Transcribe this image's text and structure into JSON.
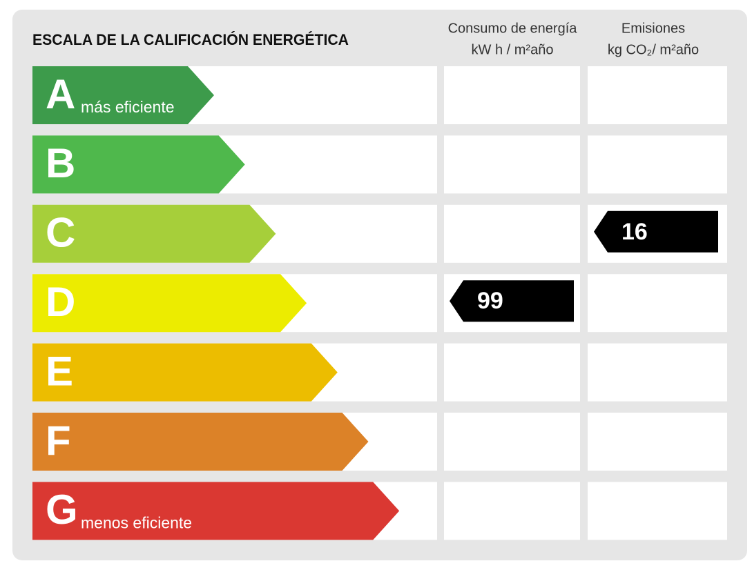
{
  "header": {
    "title": "ESCALA DE LA CALIFICACIÓN ENERGÉTICA",
    "columns": [
      {
        "line1": "Consumo de energía",
        "line2": "kW h / m²año"
      },
      {
        "line1": "Emisiones",
        "line2": "kg CO₂/ m²año"
      }
    ]
  },
  "rows": [
    {
      "letter": "A",
      "note": "más eficiente",
      "color": "#3d9b4b"
    },
    {
      "letter": "B",
      "color": "#4fb84c"
    },
    {
      "letter": "C",
      "color": "#a6cf3a",
      "emissions": 16
    },
    {
      "letter": "D",
      "color": "#ecec00",
      "energy": 99
    },
    {
      "letter": "E",
      "color": "#ecbd00"
    },
    {
      "letter": "F",
      "color": "#dc8228"
    },
    {
      "letter": "G",
      "note": "menos eficiente",
      "color": "#da3832"
    }
  ]
}
